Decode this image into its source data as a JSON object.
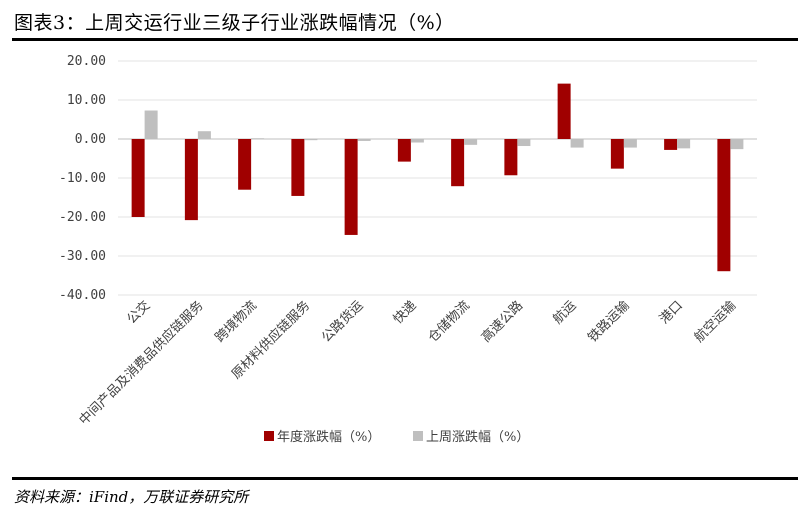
{
  "header": {
    "title": "图表3：上周交运行业三级子行业涨跌幅情况（%）"
  },
  "footer": {
    "source": "资料来源：iFind，万联证券研究所"
  },
  "chart_data": {
    "type": "bar",
    "ylim": [
      -40,
      20
    ],
    "yticks": [
      20,
      10,
      0,
      -10,
      -20,
      -30,
      -40
    ],
    "ytick_labels": [
      "20.00",
      "10.00",
      "0.00",
      "-10.00",
      "-20.00",
      "-30.00",
      "-40.00"
    ],
    "categories": [
      "公交",
      "中间产品及消费品供应链服务",
      "跨境物流",
      "原材料供应链服务",
      "公路货运",
      "快递",
      "仓储物流",
      "高速公路",
      "航运",
      "铁路运输",
      "港口",
      "航空运输"
    ],
    "series": [
      {
        "name": "年度涨跌幅（%）",
        "color": "#a00000",
        "values": [
          -20.0,
          -20.8,
          -13.0,
          -14.6,
          -24.6,
          -5.8,
          -12.1,
          -9.3,
          14.2,
          -7.6,
          -2.8,
          -33.9
        ]
      },
      {
        "name": "上周涨跌幅（%）",
        "color": "#bfbfbf",
        "values": [
          7.3,
          2.0,
          0.2,
          -0.3,
          -0.5,
          -0.9,
          -1.5,
          -1.8,
          -2.2,
          -2.2,
          -2.4,
          -2.6
        ]
      }
    ],
    "grid": true,
    "legend_position": "bottom-center"
  }
}
